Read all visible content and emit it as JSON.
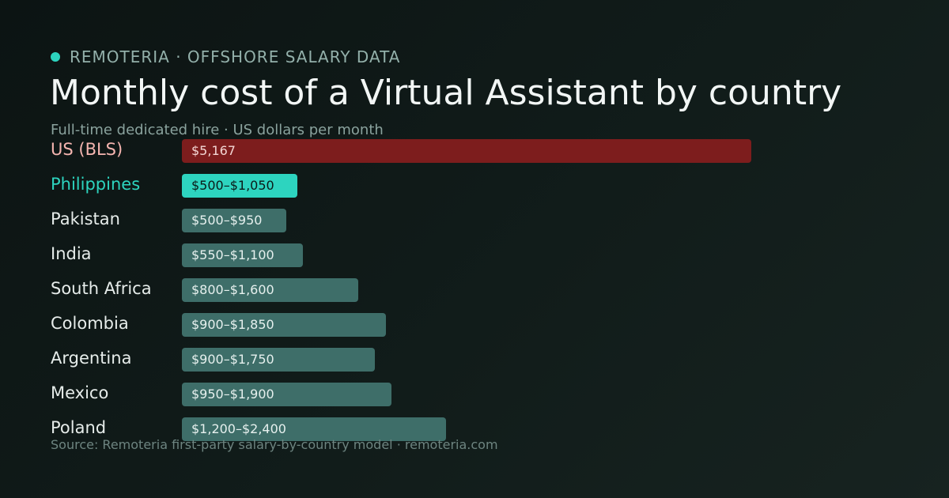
{
  "header": {
    "brand": "REMOTERIA · OFFSHORE SALARY DATA",
    "brand_dot_color": "#2dd4bf"
  },
  "chart_data": {
    "type": "bar",
    "orientation": "horizontal",
    "title": "Monthly cost of a Virtual Assistant by country",
    "subtitle": "Full-time dedicated hire · US dollars per month",
    "value_axis_max": 5167,
    "categories": [
      "US (BLS)",
      "Philippines",
      "Pakistan",
      "India",
      "South Africa",
      "Colombia",
      "Argentina",
      "Mexico",
      "Poland"
    ],
    "ranges": [
      [
        5167,
        5167
      ],
      [
        500,
        1050
      ],
      [
        500,
        950
      ],
      [
        550,
        1100
      ],
      [
        800,
        1600
      ],
      [
        900,
        1850
      ],
      [
        900,
        1750
      ],
      [
        950,
        1900
      ],
      [
        1200,
        2400
      ]
    ],
    "value_labels": [
      "$5,167",
      "$500–$1,050",
      "$500–$950",
      "$550–$1,100",
      "$800–$1,600",
      "$900–$1,850",
      "$900–$1,750",
      "$950–$1,900",
      "$1,200–$2,400"
    ],
    "highlight": {
      "US (BLS)": "benchmark",
      "Philippines": "featured"
    },
    "colors": {
      "benchmark_bar": "#7d1d1d",
      "benchmark_label": "#f5b5b0",
      "benchmark_value": "#f3d6d3",
      "featured_bar": "#2dd4bf",
      "featured_label": "#2dd4bf",
      "featured_value": "#0b1b19",
      "default_bar": "#3e6e69",
      "default_label": "#e6ecea",
      "default_value": "#e6f0ee"
    }
  },
  "footer": {
    "source": "Source: Remoteria first-party salary-by-country model · remoteria.com"
  }
}
